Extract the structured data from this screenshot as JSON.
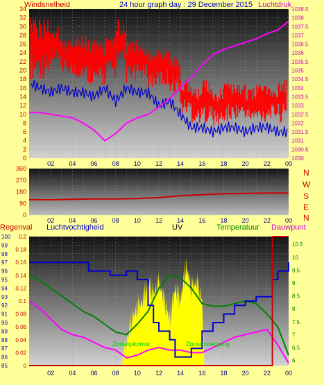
{
  "header": {
    "left_label": "Windsnelheid",
    "title": "24 hour graph day : 29 December 2015",
    "right_label": "Luchtdruk"
  },
  "direction_labels": [
    "N",
    "W",
    "S",
    "E",
    "N"
  ],
  "bottom_header": {
    "label1": "Regenval",
    "label2": "Luchtvochtigheid",
    "label3": "UV",
    "label4": "Temperatuur",
    "label5": "Dauwpunt"
  },
  "annotations": {
    "sunrise": "Zonsopkomst",
    "sunset": "Zonsondergang"
  },
  "colors": {
    "background": "#ffff99",
    "wind": "#ff0000",
    "gust": "#0000cc",
    "pressure": "#ff00ff",
    "direction": "#cc0000",
    "rain": "#cc0000",
    "humidity": "#0000cc",
    "uv": "#ffff00",
    "temperature": "#008000",
    "dewpoint": "#ff00ff",
    "sun_label": "#00cc00"
  },
  "chart_data": [
    {
      "type": "line",
      "name": "wind-pressure",
      "x_ticks": [
        "02",
        "04",
        "06",
        "08",
        "10",
        "12",
        "14",
        "16",
        "18",
        "20",
        "22",
        "00"
      ],
      "y_left_ticks": [
        0,
        2,
        4,
        6,
        8,
        10,
        12,
        14,
        16,
        18,
        20,
        22,
        24,
        26,
        28,
        30,
        32,
        34
      ],
      "y_right_ticks": [
        1030,
        1030.5,
        1031,
        1031.5,
        1032,
        1032.5,
        1033,
        1033.5,
        1034,
        1034.5,
        1035,
        1035.5,
        1036,
        1036.5,
        1037,
        1037.5,
        1038,
        1038.5
      ],
      "ylim_left": [
        0,
        34
      ],
      "ylim_right": [
        1030,
        1038.5
      ],
      "series": [
        {
          "name": "Windsnelheid",
          "axis": "left",
          "color": "#ff0000",
          "style": "band",
          "x": [
            1,
            2,
            3,
            4,
            5,
            6,
            7,
            8,
            9,
            10,
            11,
            12,
            13,
            14,
            15,
            16,
            17,
            18,
            19,
            20,
            21,
            22,
            23,
            24
          ],
          "low": [
            18,
            20,
            19,
            18,
            17,
            16,
            18,
            20,
            17,
            18,
            16,
            16,
            15,
            10,
            8,
            8,
            7,
            8,
            9,
            8,
            8,
            9,
            8,
            8
          ],
          "high": [
            32,
            30,
            27,
            28,
            28,
            27,
            28,
            32,
            27,
            26,
            25,
            26,
            24,
            18,
            16,
            18,
            16,
            18,
            17,
            16,
            17,
            16,
            18,
            16
          ]
        },
        {
          "name": "Gust",
          "axis": "left",
          "color": "#0000cc",
          "x": [
            0.2,
            1,
            2,
            3,
            4,
            5,
            6,
            7,
            8,
            9,
            10,
            11,
            12,
            13,
            14,
            15,
            16,
            17,
            18,
            19,
            20,
            21,
            22,
            23,
            24
          ],
          "values": [
            17,
            16,
            15,
            16,
            15,
            15,
            14,
            16,
            13,
            16,
            15,
            15,
            12,
            13,
            10,
            7,
            7,
            6,
            7,
            7,
            6,
            7,
            7,
            6,
            6
          ]
        },
        {
          "name": "Luchtdruk",
          "axis": "right",
          "color": "#ff00ff",
          "x": [
            0,
            1,
            2,
            3,
            4,
            5,
            6,
            7,
            8,
            9,
            10,
            11,
            12,
            13,
            14,
            15,
            16,
            17,
            18,
            19,
            20,
            21,
            22,
            23,
            24
          ],
          "values": [
            1032.6,
            1032.6,
            1032.5,
            1032.4,
            1032.3,
            1032.0,
            1031.6,
            1031.0,
            1031.4,
            1032.0,
            1032.3,
            1032.5,
            1032.9,
            1033.4,
            1034.0,
            1034.6,
            1035.3,
            1035.9,
            1036.2,
            1036.4,
            1036.6,
            1036.8,
            1037.1,
            1037.3,
            1037.8
          ]
        }
      ]
    },
    {
      "type": "line",
      "name": "wind-direction",
      "x_ticks": [
        "02",
        "04",
        "06",
        "08",
        "10",
        "12",
        "14",
        "16",
        "18",
        "20",
        "22",
        "00"
      ],
      "y_ticks": [
        0,
        90,
        180,
        270,
        360
      ],
      "ylim": [
        0,
        360
      ],
      "series": [
        {
          "name": "Windrichting",
          "color": "#cc0000",
          "x": [
            0,
            2,
            4,
            6,
            8,
            10,
            12,
            14,
            16,
            18,
            20,
            22,
            24
          ],
          "values": [
            120,
            118,
            122,
            125,
            125,
            128,
            135,
            150,
            158,
            165,
            168,
            170,
            170
          ]
        }
      ]
    },
    {
      "type": "line",
      "name": "rain-humidity-uv-temperature",
      "x_ticks": [
        "02",
        "04",
        "06",
        "08",
        "10",
        "12",
        "14",
        "16",
        "18",
        "20",
        "22",
        "00"
      ],
      "y_humidity_ticks": [
        85,
        86,
        87,
        88,
        89,
        90,
        91,
        92,
        93,
        94,
        95,
        96,
        97,
        98,
        99,
        100
      ],
      "y_rain_ticks": [
        0,
        0.02,
        0.04,
        0.06,
        0.08,
        0.1,
        0.12,
        0.14,
        0.16,
        0.18,
        0.2
      ],
      "y_temp_ticks": [
        6,
        6.5,
        7,
        7.5,
        8,
        8.5,
        9,
        9.5,
        10,
        10.5
      ],
      "ylim_humidity": [
        85,
        100
      ],
      "ylim_rain": [
        0,
        0.2
      ],
      "ylim_temp": [
        5.8,
        10.8
      ],
      "series": [
        {
          "name": "Luchtvochtigheid",
          "axis": "humidity",
          "color": "#0000cc",
          "step": true,
          "x": [
            0,
            5,
            5.5,
            7,
            7.5,
            9,
            10,
            11,
            11.5,
            12,
            13,
            13.5,
            14,
            15,
            16,
            17,
            18,
            19,
            20,
            21,
            22,
            22.5,
            23,
            24
          ],
          "values": [
            97,
            97,
            96,
            96,
            95.5,
            96,
            95,
            92,
            90,
            89,
            88,
            86,
            86,
            87,
            89,
            90,
            91,
            92,
            92.5,
            93,
            93,
            95,
            96,
            97
          ]
        },
        {
          "name": "Temperatuur",
          "axis": "temp",
          "color": "#008000",
          "x": [
            0,
            1,
            2,
            3,
            4,
            5,
            6,
            7,
            8,
            9,
            10,
            11,
            12,
            13,
            14,
            15,
            16,
            17,
            18,
            19,
            20,
            21,
            22,
            23,
            24
          ],
          "values": [
            9.3,
            9.1,
            8.8,
            8.5,
            8.2,
            7.9,
            7.7,
            7.4,
            7.1,
            7.0,
            7.4,
            7.9,
            8.8,
            9.3,
            9.2,
            8.8,
            8.2,
            8.1,
            8.1,
            8.2,
            8.3,
            8.2,
            7.8,
            7.3,
            6.2
          ]
        },
        {
          "name": "Dauwpunt",
          "axis": "temp",
          "color": "#ff00ff",
          "x": [
            0,
            1,
            2,
            3,
            4,
            5,
            6,
            7,
            8,
            9,
            10,
            11,
            12,
            13,
            14,
            15,
            16,
            17,
            18,
            19,
            20,
            21,
            22,
            23,
            24
          ],
          "values": [
            8.3,
            8.0,
            7.6,
            7.2,
            7.0,
            6.9,
            6.7,
            6.5,
            6.4,
            6.1,
            6.2,
            6.4,
            6.5,
            6.4,
            6.4,
            6.3,
            6.3,
            6.5,
            6.7,
            6.9,
            7.0,
            7.1,
            7.2,
            6.6,
            5.9
          ]
        },
        {
          "name": "UV",
          "axis": "rain",
          "color": "#ffff00",
          "style": "area",
          "x": [
            8.5,
            9,
            9.5,
            10,
            10.5,
            11,
            11.5,
            12,
            12.5,
            13,
            13.5,
            14,
            14.5,
            15,
            15.5,
            16,
            16.2
          ],
          "values": [
            0,
            0.035,
            0.07,
            0.09,
            0.1,
            0.13,
            0.11,
            0.13,
            0.1,
            0.07,
            0.12,
            0.1,
            0.155,
            0.12,
            0.13,
            0.1,
            0
          ]
        },
        {
          "name": "Regenval",
          "axis": "rain",
          "color": "#cc0000",
          "x": [
            0,
            22.5,
            22.5,
            24
          ],
          "values": [
            0,
            0,
            0.2,
            0.2
          ]
        }
      ]
    }
  ]
}
